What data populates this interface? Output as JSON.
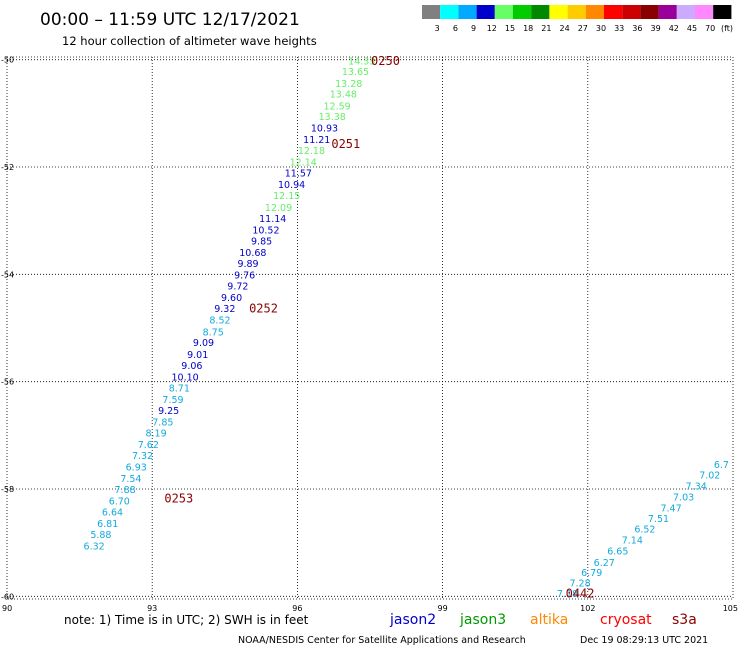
{
  "header": {
    "title": "00:00 – 11:59 UTC 12/17/2021",
    "subtitle": "12 hour collection of altimeter wave heights"
  },
  "legend": {
    "unit": "(ft)",
    "bins": [
      {
        "label": "3",
        "color": "#808080"
      },
      {
        "label": "6",
        "color": "#00ffff"
      },
      {
        "label": "9",
        "color": "#00aaff"
      },
      {
        "label": "12",
        "color": "#0000cc"
      },
      {
        "label": "15",
        "color": "#66ff66"
      },
      {
        "label": "18",
        "color": "#00cc00"
      },
      {
        "label": "21",
        "color": "#008800"
      },
      {
        "label": "24",
        "color": "#ffff00"
      },
      {
        "label": "27",
        "color": "#ffcc00"
      },
      {
        "label": "30",
        "color": "#ff8800"
      },
      {
        "label": "33",
        "color": "#ff0000"
      },
      {
        "label": "36",
        "color": "#cc0000"
      },
      {
        "label": "39",
        "color": "#880000"
      },
      {
        "label": "42",
        "color": "#990099"
      },
      {
        "label": "45",
        "color": "#ccaaff"
      },
      {
        "label": "70",
        "color": "#ff88ff"
      },
      {
        "label": "",
        "color": "#000000"
      }
    ]
  },
  "chart_data": {
    "type": "scatter",
    "xlim": [
      90,
      105
    ],
    "ylim": [
      -60.05,
      -49.95
    ],
    "x_ticks": [
      {
        "value": 90,
        "label": "90"
      },
      {
        "value": 93,
        "label": "93"
      },
      {
        "value": 96,
        "label": "96"
      },
      {
        "value": 99,
        "label": "99"
      },
      {
        "value": 102,
        "label": "102"
      },
      {
        "value": 105,
        "label": "105"
      }
    ],
    "y_ticks": [
      {
        "value": -50,
        "label": "-50"
      },
      {
        "value": -52,
        "label": "-52"
      },
      {
        "value": -54,
        "label": "-54"
      },
      {
        "value": -56,
        "label": "-56"
      },
      {
        "value": -58,
        "label": "-58"
      },
      {
        "value": -60,
        "label": "-60"
      }
    ],
    "grid": true,
    "series": [
      {
        "name": "jason2",
        "points": [
          {
            "lon": 97.33,
            "lat": -50.02,
            "v": "14.33",
            "color": "#66ee66"
          },
          {
            "lon": 97.2,
            "lat": -50.22,
            "v": "13.65",
            "color": "#66ee66"
          },
          {
            "lon": 97.06,
            "lat": -50.44,
            "v": "13.28",
            "color": "#66ee66"
          },
          {
            "lon": 96.95,
            "lat": -50.64,
            "v": "13.48",
            "color": "#66ee66"
          },
          {
            "lon": 96.82,
            "lat": -50.86,
            "v": "12.59",
            "color": "#66ee66"
          },
          {
            "lon": 96.72,
            "lat": -51.06,
            "v": "13.38",
            "color": "#66ee66"
          },
          {
            "lon": 96.56,
            "lat": -51.27,
            "v": "10.93",
            "color": "#0000cc"
          },
          {
            "lon": 96.4,
            "lat": -51.49,
            "v": "11.21",
            "color": "#0000cc"
          },
          {
            "lon": 96.29,
            "lat": -51.69,
            "v": "12.18",
            "color": "#66ee66"
          },
          {
            "lon": 96.12,
            "lat": -51.91,
            "v": "12.14",
            "color": "#66ee66"
          },
          {
            "lon": 96.02,
            "lat": -52.11,
            "v": "11.57",
            "color": "#0000cc"
          },
          {
            "lon": 95.88,
            "lat": -52.33,
            "v": "10.94",
            "color": "#0000cc"
          },
          {
            "lon": 95.78,
            "lat": -52.53,
            "v": "12.15",
            "color": "#66ee66"
          },
          {
            "lon": 95.61,
            "lat": -52.75,
            "v": "12.09",
            "color": "#66ee66"
          },
          {
            "lon": 95.49,
            "lat": -52.96,
            "v": "11.14",
            "color": "#0000cc"
          },
          {
            "lon": 95.35,
            "lat": -53.17,
            "v": "10.52",
            "color": "#0000cc"
          },
          {
            "lon": 95.26,
            "lat": -53.38,
            "v": "9.85",
            "color": "#0000cc"
          },
          {
            "lon": 95.08,
            "lat": -53.59,
            "v": "10.68",
            "color": "#0000cc"
          },
          {
            "lon": 94.98,
            "lat": -53.8,
            "v": "9.89",
            "color": "#0000cc"
          },
          {
            "lon": 94.91,
            "lat": -54.01,
            "v": "9.76",
            "color": "#0000cc"
          },
          {
            "lon": 94.77,
            "lat": -54.22,
            "v": "9.72",
            "color": "#0000cc"
          },
          {
            "lon": 94.64,
            "lat": -54.43,
            "v": "9.60",
            "color": "#0000cc"
          },
          {
            "lon": 94.5,
            "lat": -54.64,
            "v": "9.32",
            "color": "#0000cc"
          },
          {
            "lon": 94.4,
            "lat": -54.85,
            "v": "8.52",
            "color": "#11aadd"
          },
          {
            "lon": 94.26,
            "lat": -55.07,
            "v": "8.75",
            "color": "#11aadd"
          },
          {
            "lon": 94.06,
            "lat": -55.27,
            "v": "9.09",
            "color": "#0000cc"
          },
          {
            "lon": 93.94,
            "lat": -55.49,
            "v": "9.01",
            "color": "#0000cc"
          },
          {
            "lon": 93.82,
            "lat": -55.7,
            "v": "9.06",
            "color": "#0000cc"
          },
          {
            "lon": 93.68,
            "lat": -55.91,
            "v": "10.10",
            "color": "#0000cc"
          },
          {
            "lon": 93.56,
            "lat": -56.12,
            "v": "8.71",
            "color": "#11aadd"
          },
          {
            "lon": 93.43,
            "lat": -56.33,
            "v": "7.59",
            "color": "#11aadd"
          },
          {
            "lon": 93.34,
            "lat": -56.54,
            "v": "9.25",
            "color": "#0000cc"
          },
          {
            "lon": 93.22,
            "lat": -56.75,
            "v": "7.85",
            "color": "#11aadd"
          },
          {
            "lon": 93.08,
            "lat": -56.96,
            "v": "8.19",
            "color": "#11aadd"
          },
          {
            "lon": 92.92,
            "lat": -57.17,
            "v": "7.62",
            "color": "#11aadd"
          },
          {
            "lon": 92.8,
            "lat": -57.38,
            "v": "7.32",
            "color": "#11aadd"
          },
          {
            "lon": 92.67,
            "lat": -57.59,
            "v": "6.93",
            "color": "#11aadd"
          },
          {
            "lon": 92.56,
            "lat": -57.8,
            "v": "7.54",
            "color": "#11aadd"
          },
          {
            "lon": 92.44,
            "lat": -58.01,
            "v": "7.88",
            "color": "#11aadd"
          },
          {
            "lon": 92.32,
            "lat": -58.22,
            "v": "6.70",
            "color": "#11aadd"
          },
          {
            "lon": 92.18,
            "lat": -58.43,
            "v": "6.64",
            "color": "#11aadd"
          },
          {
            "lon": 92.08,
            "lat": -58.64,
            "v": "6.81",
            "color": "#11aadd"
          },
          {
            "lon": 91.94,
            "lat": -58.85,
            "v": "5.88",
            "color": "#11aadd"
          },
          {
            "lon": 91.8,
            "lat": -59.06,
            "v": "6.32",
            "color": "#11aadd"
          },
          {
            "lon": 101.58,
            "lat": -59.95,
            "v": "7.18",
            "color": "#11aadd"
          },
          {
            "lon": 101.84,
            "lat": -59.75,
            "v": "7.28",
            "color": "#11aadd"
          },
          {
            "lon": 102.08,
            "lat": -59.56,
            "v": "6.79",
            "color": "#11aadd"
          },
          {
            "lon": 102.34,
            "lat": -59.37,
            "v": "6.27",
            "color": "#11aadd"
          },
          {
            "lon": 102.62,
            "lat": -59.16,
            "v": "6.65",
            "color": "#11aadd"
          },
          {
            "lon": 102.92,
            "lat": -58.95,
            "v": "7.14",
            "color": "#11aadd"
          },
          {
            "lon": 103.18,
            "lat": -58.75,
            "v": "6.52",
            "color": "#11aadd"
          },
          {
            "lon": 103.46,
            "lat": -58.55,
            "v": "7.51",
            "color": "#11aadd"
          },
          {
            "lon": 103.72,
            "lat": -58.35,
            "v": "7.47",
            "color": "#11aadd"
          },
          {
            "lon": 103.98,
            "lat": -58.15,
            "v": "7.03",
            "color": "#11aadd"
          },
          {
            "lon": 104.24,
            "lat": -57.94,
            "v": "7.34",
            "color": "#11aadd"
          },
          {
            "lon": 104.52,
            "lat": -57.74,
            "v": "7.02",
            "color": "#11aadd"
          },
          {
            "lon": 104.76,
            "lat": -57.54,
            "v": "6.7",
            "color": "#11aadd"
          }
        ]
      }
    ],
    "pass_labels": [
      {
        "lon": 97.82,
        "lat": -50.02,
        "text": "0250",
        "color": "#8b0000"
      },
      {
        "lon": 97.0,
        "lat": -51.57,
        "text": "0251",
        "color": "#8b0000"
      },
      {
        "lon": 95.3,
        "lat": -54.64,
        "text": "0252",
        "color": "#8b0000"
      },
      {
        "lon": 93.55,
        "lat": -58.18,
        "text": "0253",
        "color": "#8b0000"
      },
      {
        "lon": 101.84,
        "lat": -59.95,
        "text": "0442",
        "color": "#007700"
      }
    ]
  },
  "note": "note: 1) Time is in UTC; 2) SWH is in feet",
  "satellites": [
    {
      "name": "jason2",
      "color": "#0000cc"
    },
    {
      "name": "jason3",
      "color": "#009900"
    },
    {
      "name": "altika",
      "color": "#ff8800"
    },
    {
      "name": "cryosat",
      "color": "#ff0000"
    },
    {
      "name": "s3a",
      "color": "#8b0000"
    }
  ],
  "footer": {
    "center": "NOAA/NESDIS Center for Satellite Applications and Research",
    "timestamp": "Dec 19 08:29:13 UTC 2021"
  }
}
